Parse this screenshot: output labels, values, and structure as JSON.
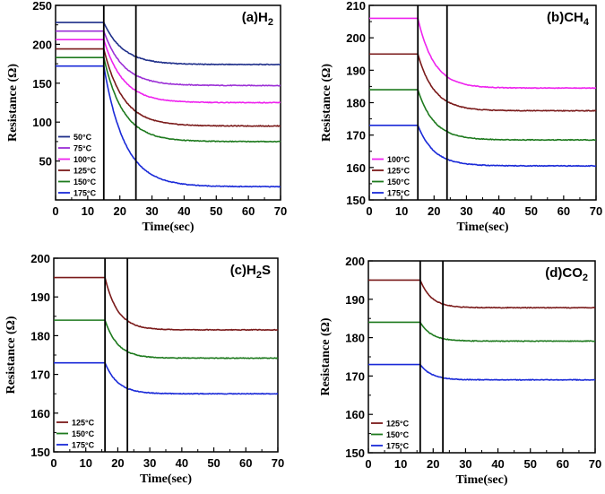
{
  "chart_data": [
    {
      "type": "line",
      "title": "(a)H2",
      "title_main": "(a)H",
      "title_sub": "2",
      "xlabel": "Time(sec)",
      "ylabel": "Resistance (Ω)",
      "xlim": [
        0,
        70
      ],
      "ylim": [
        0,
        250
      ],
      "xticks": [
        0,
        10,
        20,
        30,
        40,
        50,
        60,
        70
      ],
      "yticks": [
        50,
        100,
        150,
        200,
        250
      ],
      "gas_on": 15,
      "gas_off": 25,
      "legend_position": "bottom-left",
      "series": [
        {
          "name": "50°C",
          "color": "#1f2f8a",
          "baseline": 228,
          "final": 174,
          "tau": 6
        },
        {
          "name": "75°C",
          "color": "#9b2fd6",
          "baseline": 217,
          "final": 147,
          "tau": 6
        },
        {
          "name": "100°C",
          "color": "#ee22ee",
          "baseline": 206,
          "final": 125,
          "tau": 6
        },
        {
          "name": "125°C",
          "color": "#7a1a1a",
          "baseline": 194,
          "final": 95,
          "tau": 6
        },
        {
          "name": "150°C",
          "color": "#1e7a1e",
          "baseline": 183,
          "final": 75,
          "tau": 6
        },
        {
          "name": "175°C",
          "color": "#1a2ad8",
          "baseline": 172,
          "final": 17,
          "tau": 6.5
        }
      ]
    },
    {
      "type": "line",
      "title": "(b)CH4",
      "title_main": "(b)CH",
      "title_sub": "4",
      "xlabel": "Time(sec)",
      "ylabel": "Resistance (Ω)",
      "xlim": [
        0,
        70
      ],
      "ylim": [
        150,
        210
      ],
      "xticks": [
        0,
        10,
        20,
        30,
        40,
        50,
        60,
        70
      ],
      "yticks": [
        150,
        160,
        170,
        180,
        190,
        200,
        210
      ],
      "gas_on": 15,
      "gas_off": 24,
      "legend_position": "bottom-left",
      "series": [
        {
          "name": "100°C",
          "color": "#ee22ee",
          "baseline": 206,
          "final": 184.5,
          "tau": 5
        },
        {
          "name": "125°C",
          "color": "#7a1a1a",
          "baseline": 195,
          "final": 177.5,
          "tau": 5
        },
        {
          "name": "150°C",
          "color": "#1e7a1e",
          "baseline": 184,
          "final": 168.5,
          "tau": 5
        },
        {
          "name": "175°C",
          "color": "#1a2ad8",
          "baseline": 173,
          "final": 160.5,
          "tau": 5
        }
      ]
    },
    {
      "type": "line",
      "title": "(c)H2S",
      "title_main": "(c)H",
      "title_sub": "2",
      "title_tail": "S",
      "xlabel": "Time(sec)",
      "ylabel": "Resistance (Ω)",
      "xlim": [
        0,
        70
      ],
      "ylim": [
        150,
        200
      ],
      "xticks": [
        0,
        10,
        20,
        30,
        40,
        50,
        60,
        70
      ],
      "yticks": [
        150,
        160,
        170,
        180,
        190,
        200
      ],
      "gas_on": 16,
      "gas_off": 23,
      "legend_position": "bottom-left",
      "series": [
        {
          "name": "125°C",
          "color": "#7a1a1a",
          "baseline": 195,
          "final": 181.5,
          "tau": 4
        },
        {
          "name": "150°C",
          "color": "#1e7a1e",
          "baseline": 184,
          "final": 174.2,
          "tau": 4
        },
        {
          "name": "175°C",
          "color": "#1a2ad8",
          "baseline": 173,
          "final": 165,
          "tau": 4
        }
      ]
    },
    {
      "type": "line",
      "title": "(d)CO2",
      "title_main": "(d)CO",
      "title_sub": "2",
      "xlabel": "Time(sec)",
      "ylabel": "Resistance (Ω)",
      "xlim": [
        0,
        70
      ],
      "ylim": [
        150,
        200
      ],
      "xticks": [
        0,
        10,
        20,
        30,
        40,
        50,
        60,
        70
      ],
      "yticks": [
        150,
        160,
        170,
        180,
        190,
        200
      ],
      "gas_on": 16,
      "gas_off": 23,
      "legend_position": "bottom-left",
      "series": [
        {
          "name": "125°C",
          "color": "#7a1a1a",
          "baseline": 195,
          "final": 187.8,
          "tau": 3.5
        },
        {
          "name": "150°C",
          "color": "#1e7a1e",
          "baseline": 184,
          "final": 179.1,
          "tau": 3.5
        },
        {
          "name": "175°C",
          "color": "#1a2ad8",
          "baseline": 173,
          "final": 169,
          "tau": 3.5
        }
      ]
    }
  ]
}
